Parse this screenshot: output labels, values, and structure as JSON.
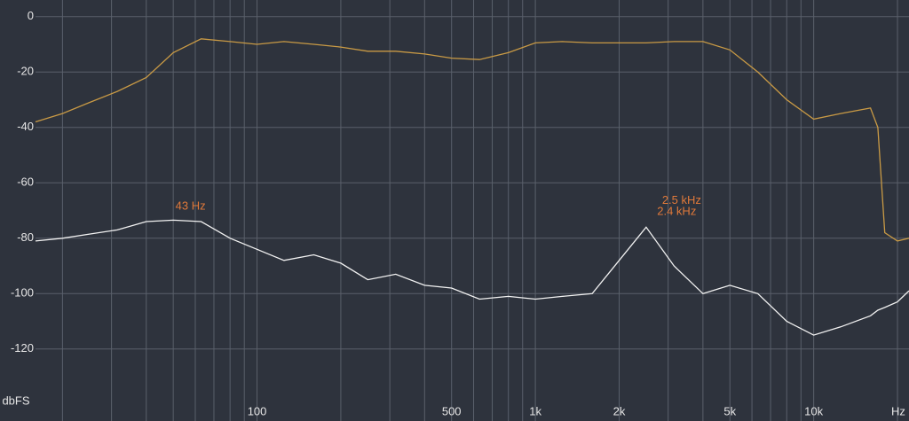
{
  "chart_data": {
    "type": "line",
    "x_unit": "Hz",
    "y_label": "dbFS",
    "xscale": "log",
    "grid": true,
    "xlim": [
      16,
      22000
    ],
    "ylim": [
      -146,
      6
    ],
    "yticks": [
      0,
      -20,
      -40,
      -60,
      -80,
      -100,
      -120
    ],
    "xticks": [
      100,
      500,
      {
        "value": 1000,
        "label": "1k"
      },
      {
        "value": 2000,
        "label": "2k"
      },
      {
        "value": 5000,
        "label": "5k"
      },
      {
        "value": 10000,
        "label": "10k"
      }
    ],
    "xminor": [
      20,
      30,
      40,
      50,
      60,
      70,
      80,
      90,
      200,
      300,
      400,
      600,
      700,
      800,
      900,
      3000,
      4000,
      6000,
      7000,
      8000,
      9000,
      20000
    ],
    "x": [
      16,
      20,
      25,
      31.5,
      40,
      50,
      63,
      80,
      100,
      125,
      160,
      200,
      250,
      315,
      400,
      500,
      630,
      800,
      1000,
      1250,
      1600,
      2000,
      2500,
      3150,
      4000,
      5000,
      6300,
      8000,
      10000,
      12500,
      16000,
      17000,
      18000,
      20000,
      22000
    ],
    "series": [
      {
        "color": "#c99a45",
        "values": [
          -38,
          -35,
          -31,
          -27,
          -22,
          -13,
          -8,
          -9,
          -10,
          -9,
          -10,
          -11,
          -12.5,
          -12.5,
          -13.5,
          -15,
          -15.5,
          -13,
          -9.5,
          -9,
          -9.5,
          -9.5,
          -9.5,
          -9,
          -9,
          -12,
          -20,
          -30,
          -37,
          -35,
          -33,
          -40,
          -78,
          -81,
          -80
        ]
      },
      {
        "color": "#f2f2f2",
        "values": [
          -81,
          -80,
          -78.5,
          -77,
          -74,
          -73.5,
          -74,
          -80,
          -84,
          -88,
          -86,
          -89,
          -95,
          -93,
          -97,
          -98,
          -102,
          -101,
          -102,
          -101,
          -100,
          -88,
          -76,
          -90,
          -100,
          -97,
          -100,
          -110,
          -115,
          -112,
          -108,
          -106,
          -105,
          -103,
          -99
        ]
      }
    ],
    "annotations": [
      {
        "text": "43 Hz",
        "x": 43,
        "y": -73
      },
      {
        "text": "2.5 kHz",
        "x": 2500,
        "y": -71
      },
      {
        "text": "2.4 kHz",
        "x": 2400,
        "y": -75
      }
    ]
  }
}
